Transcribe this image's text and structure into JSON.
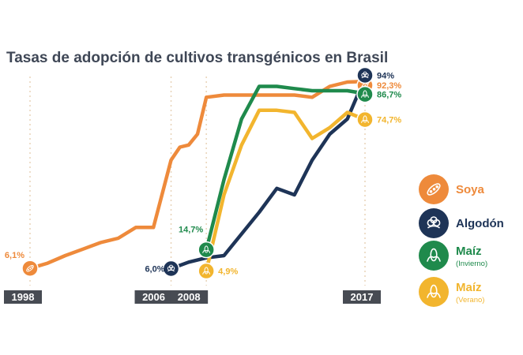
{
  "chart_data": {
    "type": "line",
    "title": "Tasas de adopción de cultivos transgénicos en Brasil",
    "xlabel": "",
    "ylabel": "",
    "x_tick_labels": [
      "1998",
      "2006",
      "2008",
      "2017"
    ],
    "xlim": [
      1998,
      2017
    ],
    "ylim": [
      0,
      100
    ],
    "grid": false,
    "legend_position": "right",
    "series": [
      {
        "name": "Soya",
        "sub": "",
        "color": "#ee8a3b",
        "icon": "soy-icon",
        "points": [
          [
            1998,
            6.1
          ],
          [
            1999,
            8.5
          ],
          [
            2000,
            12
          ],
          [
            2001,
            15
          ],
          [
            2002,
            18
          ],
          [
            2003,
            20
          ],
          [
            2004,
            25
          ],
          [
            2005,
            25
          ],
          [
            2006,
            56
          ],
          [
            2006.5,
            62
          ],
          [
            2007,
            63
          ],
          [
            2007.5,
            68
          ],
          [
            2008,
            85
          ],
          [
            2009,
            86
          ],
          [
            2010,
            86
          ],
          [
            2011,
            86
          ],
          [
            2012,
            86
          ],
          [
            2013,
            86
          ],
          [
            2014,
            85
          ],
          [
            2015,
            90
          ],
          [
            2016,
            92
          ],
          [
            2017,
            92.3
          ]
        ],
        "start_label": "6,1%",
        "end_label": "92,3%"
      },
      {
        "name": "Algodón",
        "sub": "",
        "color": "#1e3457",
        "icon": "cotton-icon",
        "points": [
          [
            2006,
            6.0
          ],
          [
            2007,
            9
          ],
          [
            2008,
            11
          ],
          [
            2009,
            12
          ],
          [
            2011,
            32
          ],
          [
            2012,
            43
          ],
          [
            2013,
            40
          ],
          [
            2014,
            56
          ],
          [
            2015,
            68
          ],
          [
            2016,
            75
          ],
          [
            2017,
            94
          ]
        ],
        "start_label": "6,0%",
        "end_label": "94%"
      },
      {
        "name": "Maíz",
        "sub": "(Invierno)",
        "color": "#1f8a4c",
        "icon": "corn-winter-icon",
        "points": [
          [
            2008,
            14.7
          ],
          [
            2009,
            47
          ],
          [
            2010,
            75
          ],
          [
            2011,
            90
          ],
          [
            2012,
            90
          ],
          [
            2013,
            89
          ],
          [
            2014,
            88
          ],
          [
            2015,
            88
          ],
          [
            2016,
            88
          ],
          [
            2017,
            86.7
          ]
        ],
        "start_label": "14,7%",
        "end_label": "86,7%"
      },
      {
        "name": "Maíz",
        "sub": "(Verano)",
        "color": "#f2b52e",
        "icon": "corn-summer-icon",
        "points": [
          [
            2008,
            4.9
          ],
          [
            2009,
            40
          ],
          [
            2010,
            63
          ],
          [
            2011,
            79
          ],
          [
            2012,
            79
          ],
          [
            2013,
            78
          ],
          [
            2014,
            66
          ],
          [
            2015,
            71
          ],
          [
            2016,
            78
          ],
          [
            2017,
            74.7
          ]
        ],
        "start_label": "4,9%",
        "end_label": "74,7%"
      }
    ]
  },
  "colors": {
    "year_badge": "#474b53",
    "grid_dots": "#e8d3b8",
    "title": "#3f4756"
  }
}
